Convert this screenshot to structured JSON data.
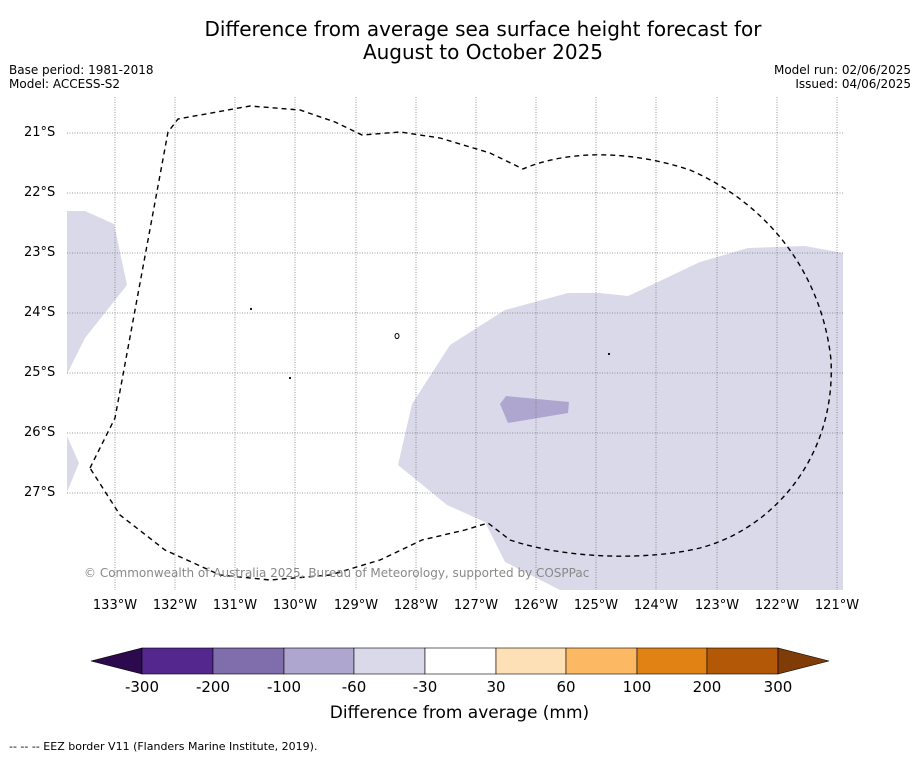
{
  "title_line1": "Difference from average sea surface height forecast for",
  "title_line2": "August to October 2025",
  "base_period": "Base period: 1981-2018",
  "model": "Model: ACCESS-S2",
  "model_run": "Model run: 02/06/2025",
  "issued": "Issued: 04/06/2025",
  "copyright": "© Commonwealth of Australia 2025, Bureau of Meteorology, supported by COSPPac",
  "latitudes": [
    "21°S",
    "22°S",
    "23°S",
    "24°S",
    "25°S",
    "26°S",
    "27°S"
  ],
  "longitudes": [
    "133°W",
    "132°W",
    "131°W",
    "130°W",
    "129°W",
    "128°W",
    "127°W",
    "126°W",
    "125°W",
    "124°W",
    "123°W",
    "122°W",
    "121°W"
  ],
  "legend": {
    "title": "Difference from average (mm)",
    "ticks": [
      "-300",
      "-200",
      "-100",
      "-60",
      "-30",
      "30",
      "60",
      "100",
      "200",
      "300"
    ],
    "colors": [
      "#2d0a4e",
      "#54278f",
      "#7f6eab",
      "#aea6cf",
      "#d9d9ea",
      "#ffffff",
      "#fee0b6",
      "#fdb863",
      "#e08214",
      "#b35806",
      "#7f3b08"
    ]
  },
  "footnote": "--  --  -- EEZ border V11 (Flanders Marine Institute, 2019)."
}
